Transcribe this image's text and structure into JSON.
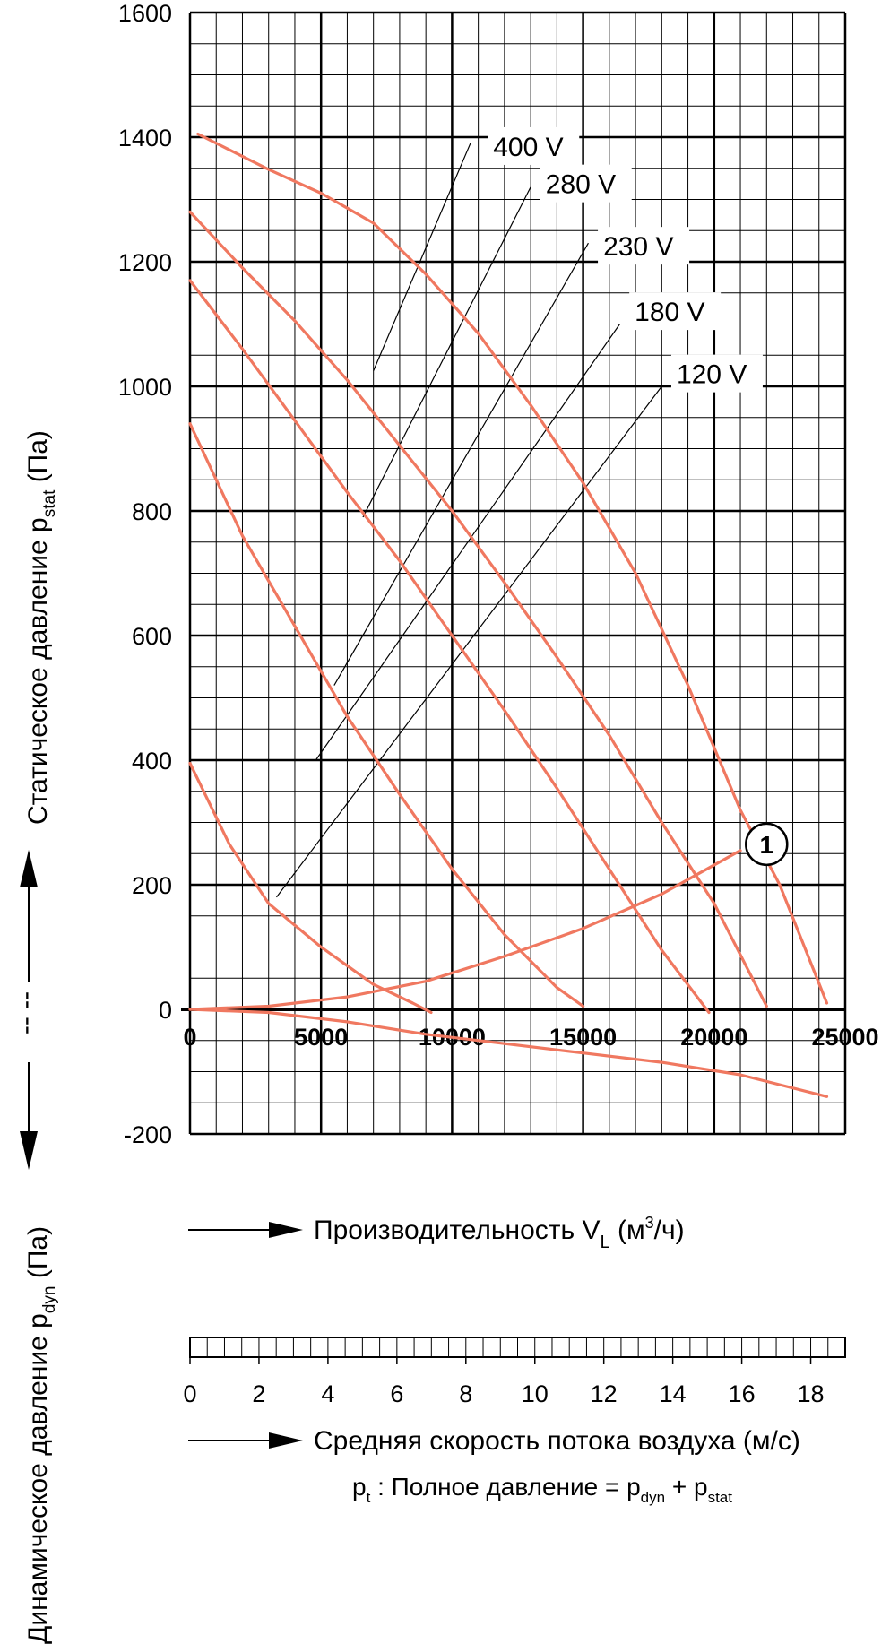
{
  "chart_data": {
    "type": "line",
    "title": "",
    "xlabel": {
      "prefix": "Производительность V",
      "sub": "L",
      "unit_pre": " (м",
      "sup": "3",
      "unit_post": "/ч)"
    },
    "ylabel_static": {
      "prefix": "Статическое давление p",
      "sub": "stat",
      "unit": " (Па)"
    },
    "ylabel_dynamic": {
      "prefix": "Динамическое давление p",
      "sub": "dyn",
      "unit": " (Па)"
    },
    "velocity_label": "Средняя скорость потока воздуха (м/с)",
    "formula": {
      "p": "p",
      "p_sub": "t",
      "text": " : Полное давление = p",
      "dyn_sub": "dyn",
      "plus": " + p",
      "stat_sub": "stat"
    },
    "xlim": [
      0,
      25000
    ],
    "ylim": [
      -200,
      1600
    ],
    "x_ticks": [
      0,
      5000,
      10000,
      15000,
      20000,
      25000
    ],
    "y_ticks": [
      -200,
      0,
      200,
      400,
      600,
      800,
      1000,
      1200,
      1400,
      1600
    ],
    "velocity_ticks": [
      0,
      2,
      4,
      6,
      8,
      10,
      12,
      14,
      16,
      18
    ],
    "velocity_max": 19,
    "grid": true,
    "line_color": "#f07860",
    "series": [
      {
        "name": "400 V",
        "x": [
          300,
          3000,
          5000,
          7000,
          9000,
          11000,
          13000,
          15000,
          17000,
          19000,
          21000,
          22500,
          24300
        ],
        "y": [
          1405,
          1348,
          1310,
          1262,
          1180,
          1085,
          970,
          845,
          700,
          520,
          320,
          200,
          10
        ]
      },
      {
        "name": "280 V",
        "x": [
          0,
          2000,
          4000,
          6000,
          8000,
          10000,
          12000,
          14000,
          16000,
          18000,
          20000,
          22000
        ],
        "y": [
          1280,
          1190,
          1105,
          1010,
          905,
          800,
          685,
          565,
          440,
          300,
          170,
          5
        ]
      },
      {
        "name": "230 V",
        "x": [
          0,
          2000,
          4000,
          6000,
          8000,
          10000,
          12000,
          14000,
          16000,
          18000,
          19800
        ],
        "y": [
          1170,
          1060,
          945,
          830,
          720,
          600,
          480,
          355,
          225,
          95,
          -5
        ]
      },
      {
        "name": "180 V",
        "x": [
          0,
          2000,
          4000,
          6000,
          8000,
          10000,
          12000,
          14000,
          15000
        ],
        "y": [
          940,
          760,
          615,
          470,
          345,
          225,
          120,
          35,
          5
        ]
      },
      {
        "name": "120 V",
        "x": [
          0,
          1500,
          3000,
          5000,
          7000,
          8500,
          9200
        ],
        "y": [
          395,
          265,
          170,
          100,
          40,
          10,
          -5
        ]
      }
    ],
    "system_curve": {
      "x": [
        0,
        3000,
        6000,
        9000,
        12000,
        15000,
        18000,
        21000
      ],
      "y": [
        0,
        5,
        20,
        45,
        85,
        130,
        185,
        255
      ]
    },
    "dynamic_curve": {
      "x": [
        0,
        3000,
        6000,
        9000,
        12000,
        15000,
        18000,
        21000,
        24300
      ],
      "y": [
        0,
        -5,
        -20,
        -40,
        -55,
        -70,
        -85,
        -105,
        -140
      ]
    },
    "marker": {
      "label": "1",
      "x": 22000,
      "y": 265
    },
    "voltage_labels": [
      {
        "text": "400 V",
        "x": 11500,
        "y": 1390,
        "tx": 7000,
        "ty": 1350,
        "lx0": 10700,
        "ly0": 1390,
        "lx1": 7000,
        "ly1": 1025
      },
      {
        "text": "280 V",
        "x": 13500,
        "y": 1330,
        "tx": 9000,
        "ty": 1290,
        "lx0": 13000,
        "ly0": 1320,
        "lx1": 6600,
        "ly1": 790
      },
      {
        "text": "230 V",
        "x": 15700,
        "y": 1230,
        "tx": 11300,
        "ty": 1190,
        "lx0": 15200,
        "ly0": 1230,
        "lx1": 5500,
        "ly1": 520
      },
      {
        "text": "180 V",
        "x": 16900,
        "y": 1125,
        "tx": 12500,
        "ty": 1085,
        "lx0": 16400,
        "ly0": 1100,
        "lx1": 4800,
        "ly1": 400
      },
      {
        "text": "120 V",
        "x": 18500,
        "y": 1025,
        "tx": 14000,
        "ty": 985,
        "lx0": 18000,
        "ly0": 1000,
        "lx1": 3300,
        "ly1": 180
      }
    ],
    "break_marks": "-- --"
  }
}
